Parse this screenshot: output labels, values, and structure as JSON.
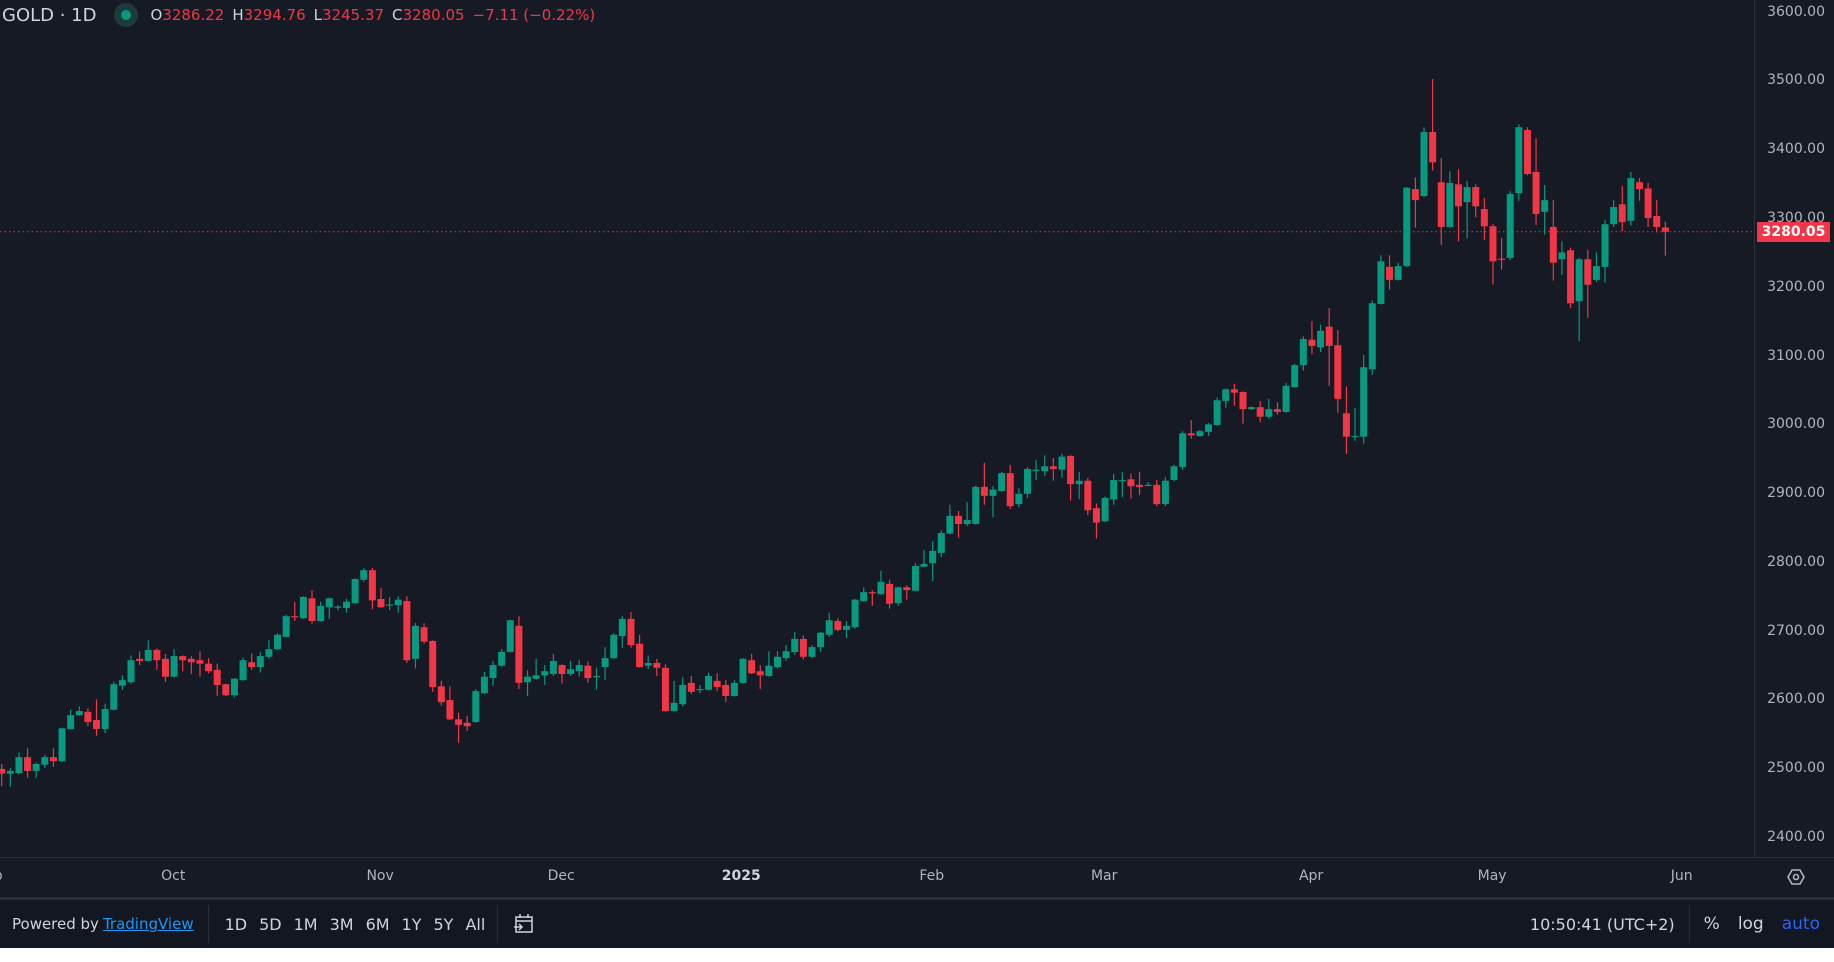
{
  "header": {
    "symbol": "GOLD · 1D",
    "open_label": "O",
    "open": "3286.22",
    "high_label": "H",
    "high": "3294.76",
    "low_label": "L",
    "low": "3245.37",
    "close_label": "C",
    "close": "3280.05",
    "change": "−7.11 (−0.22%)"
  },
  "colors": {
    "up": "#089981",
    "down": "#f23645",
    "background": "#161a25",
    "last_price": "#f23645",
    "link": "#2196f3",
    "auto": "#2962ff"
  },
  "footer": {
    "powered_by": "Powered by",
    "brand_link": "TradingView",
    "ranges": [
      "1D",
      "5D",
      "1M",
      "3M",
      "6M",
      "1Y",
      "5Y",
      "All"
    ],
    "goto_icon": "calendar-goto-icon",
    "clock": "10:50:41 (UTC+2)",
    "percent": "%",
    "log": "log",
    "auto": "auto"
  },
  "time_axis": {
    "settings_icon": "settings-icon"
  },
  "chart_data": {
    "type": "candlestick",
    "title": "GOLD · 1D",
    "ylim": [
      2400,
      3600
    ],
    "y_ticks": [
      "3600.00",
      "3500.00",
      "3400.00",
      "3300.00",
      "3200.00",
      "3100.00",
      "3000.00",
      "2900.00",
      "2800.00",
      "2700.00",
      "2600.00",
      "2500.00",
      "2400.00"
    ],
    "x_ticks": [
      {
        "label": "p",
        "bold": false,
        "index": -1
      },
      {
        "label": "Oct",
        "bold": false,
        "index": 19.9
      },
      {
        "label": "Nov",
        "bold": false,
        "index": 43.9
      },
      {
        "label": "Dec",
        "bold": false,
        "index": 64.9
      },
      {
        "label": "2025",
        "bold": true,
        "index": 85.8
      },
      {
        "label": "Feb",
        "bold": false,
        "index": 107.9
      },
      {
        "label": "Mar",
        "bold": false,
        "index": 127.9
      },
      {
        "label": "Apr",
        "bold": false,
        "index": 151.9
      },
      {
        "label": "May",
        "bold": false,
        "index": 172.9
      },
      {
        "label": "Jun",
        "bold": false,
        "index": 194.9
      }
    ],
    "last_price": "3280.05",
    "grid": false,
    "ohlc": [
      [
        2499,
        2506,
        2474,
        2492
      ],
      [
        2492,
        2500,
        2473,
        2496
      ],
      [
        2493,
        2523,
        2491,
        2516
      ],
      [
        2516,
        2529,
        2486,
        2496
      ],
      [
        2496,
        2508,
        2486,
        2506
      ],
      [
        2505,
        2519,
        2500,
        2516
      ],
      [
        2516,
        2529,
        2502,
        2510
      ],
      [
        2510,
        2559,
        2509,
        2558
      ],
      [
        2557,
        2585,
        2556,
        2577
      ],
      [
        2577,
        2590,
        2576,
        2583
      ],
      [
        2582,
        2587,
        2561,
        2567
      ],
      [
        2570,
        2600,
        2547,
        2557
      ],
      [
        2557,
        2594,
        2551,
        2586
      ],
      [
        2585,
        2626,
        2584,
        2622
      ],
      [
        2620,
        2635,
        2614,
        2628
      ],
      [
        2625,
        2664,
        2623,
        2657
      ],
      [
        2659,
        2670,
        2650,
        2656
      ],
      [
        2656,
        2686,
        2655,
        2672
      ],
      [
        2672,
        2674,
        2643,
        2657
      ],
      [
        2659,
        2666,
        2625,
        2633
      ],
      [
        2633,
        2673,
        2632,
        2663
      ],
      [
        2663,
        2664,
        2641,
        2657
      ],
      [
        2659,
        2663,
        2637,
        2654
      ],
      [
        2657,
        2670,
        2633,
        2652
      ],
      [
        2652,
        2660,
        2638,
        2641
      ],
      [
        2643,
        2652,
        2605,
        2621
      ],
      [
        2622,
        2623,
        2605,
        2606
      ],
      [
        2606,
        2631,
        2603,
        2630
      ],
      [
        2628,
        2661,
        2627,
        2657
      ],
      [
        2654,
        2667,
        2643,
        2647
      ],
      [
        2647,
        2669,
        2639,
        2663
      ],
      [
        2662,
        2686,
        2659,
        2673
      ],
      [
        2673,
        2696,
        2672,
        2694
      ],
      [
        2691,
        2723,
        2690,
        2721
      ],
      [
        2721,
        2742,
        2714,
        2720
      ],
      [
        2718,
        2750,
        2717,
        2749
      ],
      [
        2747,
        2759,
        2710,
        2714
      ],
      [
        2714,
        2742,
        2713,
        2736
      ],
      [
        2734,
        2748,
        2717,
        2747
      ],
      [
        2734,
        2737,
        2730,
        2735
      ],
      [
        2733,
        2746,
        2726,
        2742
      ],
      [
        2740,
        2776,
        2739,
        2775
      ],
      [
        2774,
        2791,
        2771,
        2788
      ],
      [
        2788,
        2791,
        2731,
        2744
      ],
      [
        2746,
        2762,
        2733,
        2734
      ],
      [
        2737,
        2749,
        2730,
        2738
      ],
      [
        2737,
        2750,
        2726,
        2745
      ],
      [
        2743,
        2750,
        2653,
        2657
      ],
      [
        2659,
        2711,
        2645,
        2707
      ],
      [
        2705,
        2711,
        2681,
        2684
      ],
      [
        2685,
        2686,
        2611,
        2618
      ],
      [
        2619,
        2627,
        2591,
        2596
      ],
      [
        2599,
        2619,
        2570,
        2571
      ],
      [
        2571,
        2581,
        2537,
        2563
      ],
      [
        2566,
        2576,
        2554,
        2561
      ],
      [
        2567,
        2615,
        2566,
        2612
      ],
      [
        2609,
        2640,
        2608,
        2633
      ],
      [
        2631,
        2656,
        2620,
        2650
      ],
      [
        2649,
        2673,
        2648,
        2669
      ],
      [
        2669,
        2716,
        2668,
        2715
      ],
      [
        2707,
        2721,
        2615,
        2624
      ],
      [
        2625,
        2642,
        2605,
        2633
      ],
      [
        2630,
        2659,
        2629,
        2635
      ],
      [
        2635,
        2650,
        2621,
        2641
      ],
      [
        2637,
        2666,
        2634,
        2656
      ],
      [
        2650,
        2651,
        2623,
        2637
      ],
      [
        2637,
        2656,
        2634,
        2644
      ],
      [
        2641,
        2657,
        2633,
        2650
      ],
      [
        2649,
        2655,
        2624,
        2631
      ],
      [
        2633,
        2646,
        2614,
        2634
      ],
      [
        2647,
        2676,
        2628,
        2660
      ],
      [
        2660,
        2696,
        2659,
        2694
      ],
      [
        2692,
        2721,
        2675,
        2717
      ],
      [
        2717,
        2727,
        2675,
        2679
      ],
      [
        2681,
        2694,
        2646,
        2647
      ],
      [
        2649,
        2664,
        2644,
        2653
      ],
      [
        2653,
        2659,
        2634,
        2646
      ],
      [
        2646,
        2651,
        2582,
        2583
      ],
      [
        2583,
        2627,
        2582,
        2595
      ],
      [
        2593,
        2632,
        2590,
        2621
      ],
      [
        2624,
        2634,
        2608,
        2611
      ],
      [
        2614,
        2621,
        2609,
        2615
      ],
      [
        2614,
        2639,
        2613,
        2634
      ],
      [
        2627,
        2638,
        2612,
        2618
      ],
      [
        2621,
        2628,
        2596,
        2605
      ],
      [
        2605,
        2628,
        2604,
        2624
      ],
      [
        2624,
        2660,
        2623,
        2659
      ],
      [
        2657,
        2666,
        2637,
        2638
      ],
      [
        2641,
        2650,
        2615,
        2635
      ],
      [
        2634,
        2670,
        2633,
        2649
      ],
      [
        2647,
        2670,
        2645,
        2662
      ],
      [
        2660,
        2679,
        2656,
        2670
      ],
      [
        2669,
        2698,
        2665,
        2688
      ],
      [
        2688,
        2693,
        2658,
        2662
      ],
      [
        2662,
        2679,
        2660,
        2676
      ],
      [
        2676,
        2698,
        2669,
        2697
      ],
      [
        2694,
        2726,
        2691,
        2715
      ],
      [
        2714,
        2718,
        2699,
        2701
      ],
      [
        2701,
        2714,
        2689,
        2707
      ],
      [
        2705,
        2746,
        2703,
        2745
      ],
      [
        2743,
        2763,
        2742,
        2756
      ],
      [
        2756,
        2759,
        2736,
        2755
      ],
      [
        2753,
        2787,
        2752,
        2771
      ],
      [
        2768,
        2774,
        2732,
        2739
      ],
      [
        2740,
        2764,
        2736,
        2763
      ],
      [
        2763,
        2766,
        2745,
        2759
      ],
      [
        2758,
        2798,
        2757,
        2794
      ],
      [
        2793,
        2817,
        2792,
        2797
      ],
      [
        2798,
        2830,
        2772,
        2816
      ],
      [
        2813,
        2846,
        2807,
        2842
      ],
      [
        2841,
        2883,
        2840,
        2867
      ],
      [
        2867,
        2874,
        2835,
        2855
      ],
      [
        2855,
        2887,
        2852,
        2861
      ],
      [
        2855,
        2911,
        2854,
        2909
      ],
      [
        2909,
        2944,
        2883,
        2896
      ],
      [
        2896,
        2910,
        2865,
        2905
      ],
      [
        2903,
        2931,
        2902,
        2929
      ],
      [
        2929,
        2941,
        2877,
        2881
      ],
      [
        2884,
        2907,
        2879,
        2899
      ],
      [
        2899,
        2938,
        2893,
        2935
      ],
      [
        2933,
        2948,
        2919,
        2934
      ],
      [
        2932,
        2955,
        2925,
        2939
      ],
      [
        2939,
        2951,
        2918,
        2935
      ],
      [
        2934,
        2957,
        2922,
        2953
      ],
      [
        2954,
        2955,
        2889,
        2913
      ],
      [
        2913,
        2931,
        2891,
        2918
      ],
      [
        2918,
        2922,
        2868,
        2875
      ],
      [
        2878,
        2885,
        2834,
        2857
      ],
      [
        2859,
        2895,
        2858,
        2893
      ],
      [
        2891,
        2928,
        2883,
        2919
      ],
      [
        2918,
        2931,
        2894,
        2919
      ],
      [
        2920,
        2928,
        2892,
        2910
      ],
      [
        2912,
        2931,
        2897,
        2909
      ],
      [
        2911,
        2916,
        2910,
        2912
      ],
      [
        2912,
        2919,
        2881,
        2884
      ],
      [
        2884,
        2923,
        2881,
        2918
      ],
      [
        2919,
        2941,
        2917,
        2939
      ],
      [
        2938,
        2990,
        2934,
        2987
      ],
      [
        2987,
        3006,
        2979,
        2984
      ],
      [
        2983,
        2992,
        2982,
        2990
      ],
      [
        2989,
        3002,
        2983,
        3000
      ],
      [
        2999,
        3039,
        2998,
        3035
      ],
      [
        3034,
        3052,
        3024,
        3051
      ],
      [
        3051,
        3059,
        3027,
        3046
      ],
      [
        3047,
        3048,
        3001,
        3022
      ],
      [
        3022,
        3026,
        3021,
        3025
      ],
      [
        3025,
        3034,
        3003,
        3011
      ],
      [
        3011,
        3037,
        3008,
        3022
      ],
      [
        3022,
        3032,
        3014,
        3018
      ],
      [
        3018,
        3060,
        3017,
        3056
      ],
      [
        3054,
        3088,
        3053,
        3086
      ],
      [
        3086,
        3128,
        3078,
        3124
      ],
      [
        3123,
        3150,
        3102,
        3114
      ],
      [
        3112,
        3145,
        3105,
        3136
      ],
      [
        3142,
        3169,
        3056,
        3114
      ],
      [
        3115,
        3137,
        3017,
        3037
      ],
      [
        3016,
        3055,
        2957,
        2982
      ],
      [
        2982,
        3024,
        2976,
        2983
      ],
      [
        2982,
        3101,
        2972,
        3083
      ],
      [
        3080,
        3180,
        3072,
        3176
      ],
      [
        3175,
        3246,
        3174,
        3237
      ],
      [
        3229,
        3246,
        3196,
        3210
      ],
      [
        3210,
        3235,
        3209,
        3230
      ],
      [
        3230,
        3345,
        3229,
        3344
      ],
      [
        3342,
        3359,
        3286,
        3326
      ],
      [
        3332,
        3432,
        3331,
        3425
      ],
      [
        3425,
        3502,
        3369,
        3381
      ],
      [
        3352,
        3387,
        3261,
        3287
      ],
      [
        3287,
        3368,
        3286,
        3351
      ],
      [
        3349,
        3371,
        3266,
        3317
      ],
      [
        3323,
        3354,
        3270,
        3345
      ],
      [
        3345,
        3349,
        3301,
        3317
      ],
      [
        3313,
        3329,
        3268,
        3288
      ],
      [
        3288,
        3291,
        3203,
        3237
      ],
      [
        3241,
        3271,
        3225,
        3240
      ],
      [
        3242,
        3339,
        3239,
        3335
      ],
      [
        3336,
        3436,
        3325,
        3432
      ],
      [
        3428,
        3432,
        3362,
        3364
      ],
      [
        3367,
        3416,
        3290,
        3306
      ],
      [
        3309,
        3348,
        3276,
        3326
      ],
      [
        3287,
        3326,
        3209,
        3235
      ],
      [
        3240,
        3266,
        3217,
        3250
      ],
      [
        3253,
        3257,
        3169,
        3176
      ],
      [
        3179,
        3242,
        3121,
        3240
      ],
      [
        3240,
        3254,
        3155,
        3203
      ],
      [
        3210,
        3250,
        3207,
        3230
      ],
      [
        3229,
        3297,
        3206,
        3291
      ],
      [
        3291,
        3326,
        3287,
        3316
      ],
      [
        3320,
        3347,
        3281,
        3294
      ],
      [
        3296,
        3367,
        3289,
        3358
      ],
      [
        3352,
        3358,
        3325,
        3342
      ],
      [
        3343,
        3351,
        3287,
        3300
      ],
      [
        3303,
        3326,
        3279,
        3287
      ],
      [
        3286.22,
        3294.76,
        3245.37,
        3280.05
      ]
    ]
  }
}
